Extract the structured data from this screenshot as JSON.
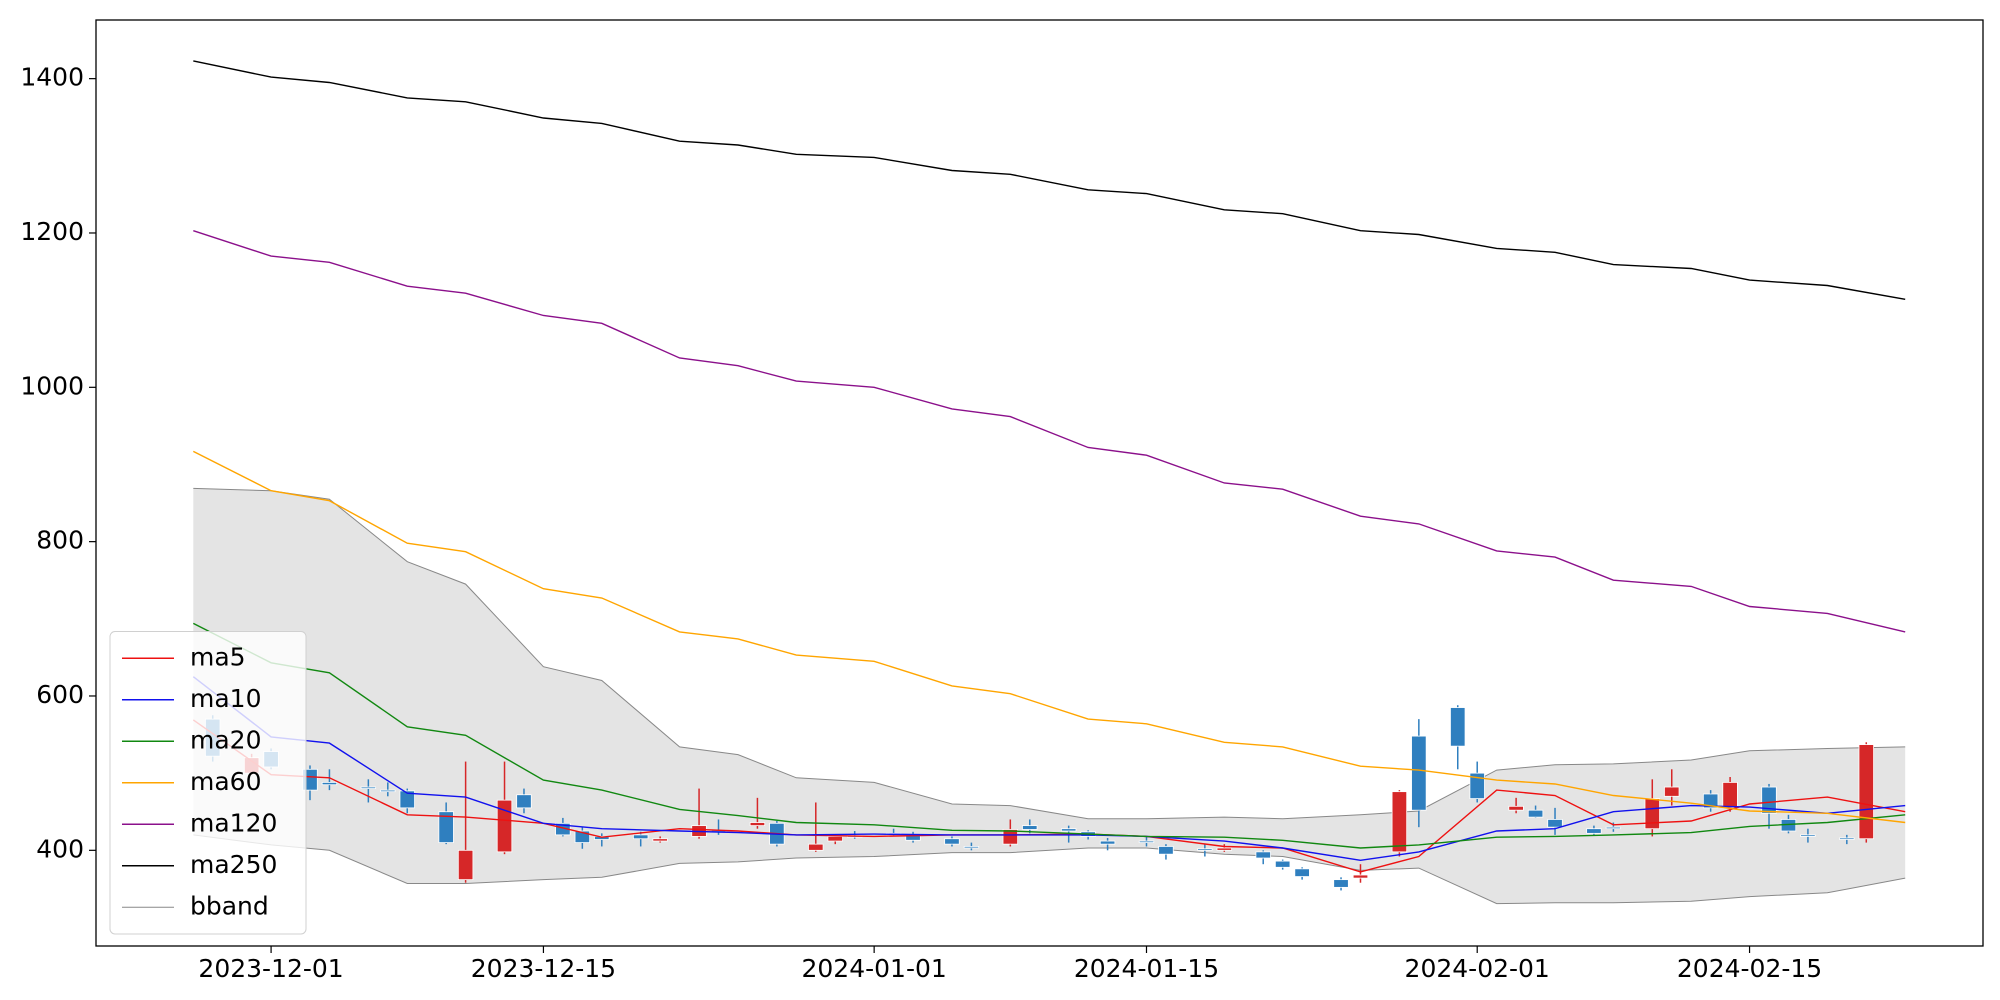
{
  "chart_data": {
    "type": "candlestick",
    "xlim": [
      "2023-11-22",
      "2024-02-27"
    ],
    "xticks": [
      "2023-12-01",
      "2023-12-15",
      "2024-01-01",
      "2024-01-15",
      "2024-02-01",
      "2024-02-15"
    ],
    "ylim": [
      276,
      1476
    ],
    "yticks": [
      400,
      600,
      800,
      1000,
      1200,
      1400
    ],
    "grid": false,
    "legend": "lower left",
    "up_color": "#d62728",
    "down_color": "#2f7fbf",
    "candles": {
      "x": [
        "2023-11-28",
        "2023-11-30",
        "2023-12-01",
        "2023-12-03",
        "2023-12-04",
        "2023-12-06",
        "2023-12-07",
        "2023-12-08",
        "2023-12-10",
        "2023-12-11",
        "2023-12-13",
        "2023-12-14",
        "2023-12-16",
        "2023-12-17",
        "2023-12-18",
        "2023-12-20",
        "2023-12-21",
        "2023-12-23",
        "2023-12-24",
        "2023-12-26",
        "2023-12-27",
        "2023-12-29",
        "2023-12-30",
        "2023-12-31",
        "2024-01-02",
        "2024-01-03",
        "2024-01-05",
        "2024-01-06",
        "2024-01-08",
        "2024-01-09",
        "2024-01-11",
        "2024-01-12",
        "2024-01-13",
        "2024-01-15",
        "2024-01-16",
        "2024-01-18",
        "2024-01-19",
        "2024-01-21",
        "2024-01-22",
        "2024-01-23",
        "2024-01-25",
        "2024-01-26",
        "2024-01-28",
        "2024-01-29",
        "2024-01-31",
        "2024-02-01",
        "2024-02-03",
        "2024-02-04",
        "2024-02-05",
        "2024-02-07",
        "2024-02-08",
        "2024-02-10",
        "2024-02-11",
        "2024-02-13",
        "2024-02-14",
        "2024-02-16",
        "2024-02-17",
        "2024-02-18",
        "2024-02-20",
        "2024-02-21"
      ],
      "open": [
        570,
        500,
        528,
        505,
        488,
        482,
        478,
        477,
        450,
        362,
        398,
        472,
        435,
        425,
        418,
        420,
        412,
        418,
        426,
        432,
        435,
        400,
        412,
        419,
        422,
        420,
        415,
        405,
        408,
        432,
        428,
        424,
        412,
        412,
        405,
        402,
        400,
        398,
        386,
        376,
        362,
        364,
        398,
        548,
        585,
        500,
        452,
        452,
        440,
        428,
        430,
        428,
        470,
        473,
        455,
        482,
        440,
        420,
        416,
        415
      ],
      "high": [
        575,
        525,
        532,
        510,
        505,
        492,
        488,
        480,
        462,
        515,
        515,
        480,
        442,
        430,
        422,
        424,
        418,
        480,
        440,
        468,
        438,
        462,
        420,
        425,
        428,
        424,
        418,
        410,
        440,
        440,
        432,
        426,
        416,
        418,
        408,
        408,
        408,
        400,
        388,
        378,
        365,
        382,
        478,
        570,
        588,
        515,
        468,
        458,
        455,
        432,
        436,
        492,
        505,
        478,
        495,
        486,
        446,
        428,
        420,
        540
      ],
      "low": [
        515,
        498,
        505,
        465,
        478,
        462,
        470,
        448,
        408,
        358,
        395,
        448,
        418,
        402,
        405,
        405,
        410,
        415,
        420,
        428,
        405,
        398,
        408,
        415,
        418,
        410,
        405,
        400,
        405,
        422,
        410,
        414,
        400,
        405,
        388,
        392,
        398,
        382,
        375,
        362,
        348,
        358,
        392,
        430,
        505,
        462,
        448,
        442,
        420,
        420,
        424,
        418,
        458,
        450,
        450,
        428,
        422,
        410,
        408,
        410
      ],
      "close": [
        522,
        520,
        508,
        478,
        485,
        480,
        476,
        455,
        410,
        400,
        465,
        455,
        420,
        410,
        414,
        415,
        415,
        432,
        424,
        436,
        408,
        408,
        418,
        418,
        421,
        413,
        408,
        404,
        427,
        427,
        425,
        418,
        408,
        410,
        395,
        400,
        403,
        390,
        378,
        366,
        352,
        368,
        476,
        452,
        535,
        467,
        457,
        443,
        430,
        422,
        428,
        467,
        482,
        455,
        488,
        448,
        425,
        418,
        415,
        537
      ]
    },
    "lines": {
      "x": [
        "2023-11-27",
        "2023-12-01",
        "2023-12-04",
        "2023-12-08",
        "2023-12-11",
        "2023-12-15",
        "2023-12-18",
        "2023-12-22",
        "2023-12-25",
        "2023-12-28",
        "2024-01-01",
        "2024-01-05",
        "2024-01-08",
        "2024-01-12",
        "2024-01-15",
        "2024-01-19",
        "2024-01-22",
        "2024-01-26",
        "2024-01-29",
        "2024-02-02",
        "2024-02-05",
        "2024-02-08",
        "2024-02-12",
        "2024-02-15",
        "2024-02-19",
        "2024-02-23"
      ],
      "series": [
        {
          "name": "ma5",
          "color": "#ee1111",
          "values": [
            569,
            498,
            494,
            446,
            443,
            435,
            417,
            428,
            425,
            420,
            418,
            420,
            420,
            421,
            418,
            405,
            403,
            372,
            392,
            478,
            471,
            433,
            438,
            460,
            469,
            450
          ]
        },
        {
          "name": "ma10",
          "color": "#1111ee",
          "values": [
            625,
            547,
            539,
            474,
            469,
            435,
            428,
            425,
            423,
            420,
            421,
            420,
            420,
            420,
            418,
            412,
            403,
            387,
            398,
            425,
            428,
            450,
            458,
            456,
            448,
            458
          ]
        },
        {
          "name": "ma20",
          "color": "#118811",
          "values": [
            694,
            643,
            630,
            560,
            549,
            491,
            478,
            453,
            445,
            436,
            433,
            426,
            425,
            421,
            418,
            417,
            413,
            403,
            407,
            417,
            418,
            420,
            423,
            431,
            436,
            446
          ]
        },
        {
          "name": "ma60",
          "color": "#ffa500",
          "values": [
            917,
            866,
            853,
            798,
            787,
            739,
            727,
            683,
            674,
            653,
            645,
            613,
            603,
            570,
            564,
            540,
            534,
            509,
            504,
            491,
            486,
            471,
            461,
            451,
            448,
            436
          ]
        },
        {
          "name": "ma120",
          "color": "#8b108b",
          "values": [
            1203,
            1170,
            1162,
            1131,
            1122,
            1093,
            1083,
            1038,
            1028,
            1008,
            1000,
            972,
            962,
            922,
            912,
            876,
            868,
            833,
            823,
            788,
            780,
            750,
            742,
            716,
            707,
            683
          ]
        },
        {
          "name": "ma250",
          "color": "#000000",
          "values": [
            1423,
            1402,
            1395,
            1375,
            1370,
            1349,
            1342,
            1319,
            1314,
            1302,
            1298,
            1281,
            1276,
            1256,
            1251,
            1230,
            1225,
            1203,
            1198,
            1180,
            1175,
            1159,
            1154,
            1139,
            1132,
            1114
          ]
        }
      ]
    },
    "bband": {
      "name": "bband",
      "color": "#888888",
      "fill": "#e4e4e4",
      "upper": [
        869,
        866,
        855,
        774,
        745,
        638,
        620,
        534,
        524,
        494,
        488,
        460,
        458,
        441,
        441,
        443,
        441,
        446,
        451,
        504,
        511,
        512,
        517,
        529,
        532,
        534
      ],
      "lower": [
        420,
        407,
        400,
        357,
        357,
        362,
        365,
        383,
        385,
        390,
        392,
        397,
        397,
        403,
        403,
        395,
        392,
        374,
        377,
        331,
        332,
        332,
        334,
        340,
        345,
        364
      ]
    }
  }
}
